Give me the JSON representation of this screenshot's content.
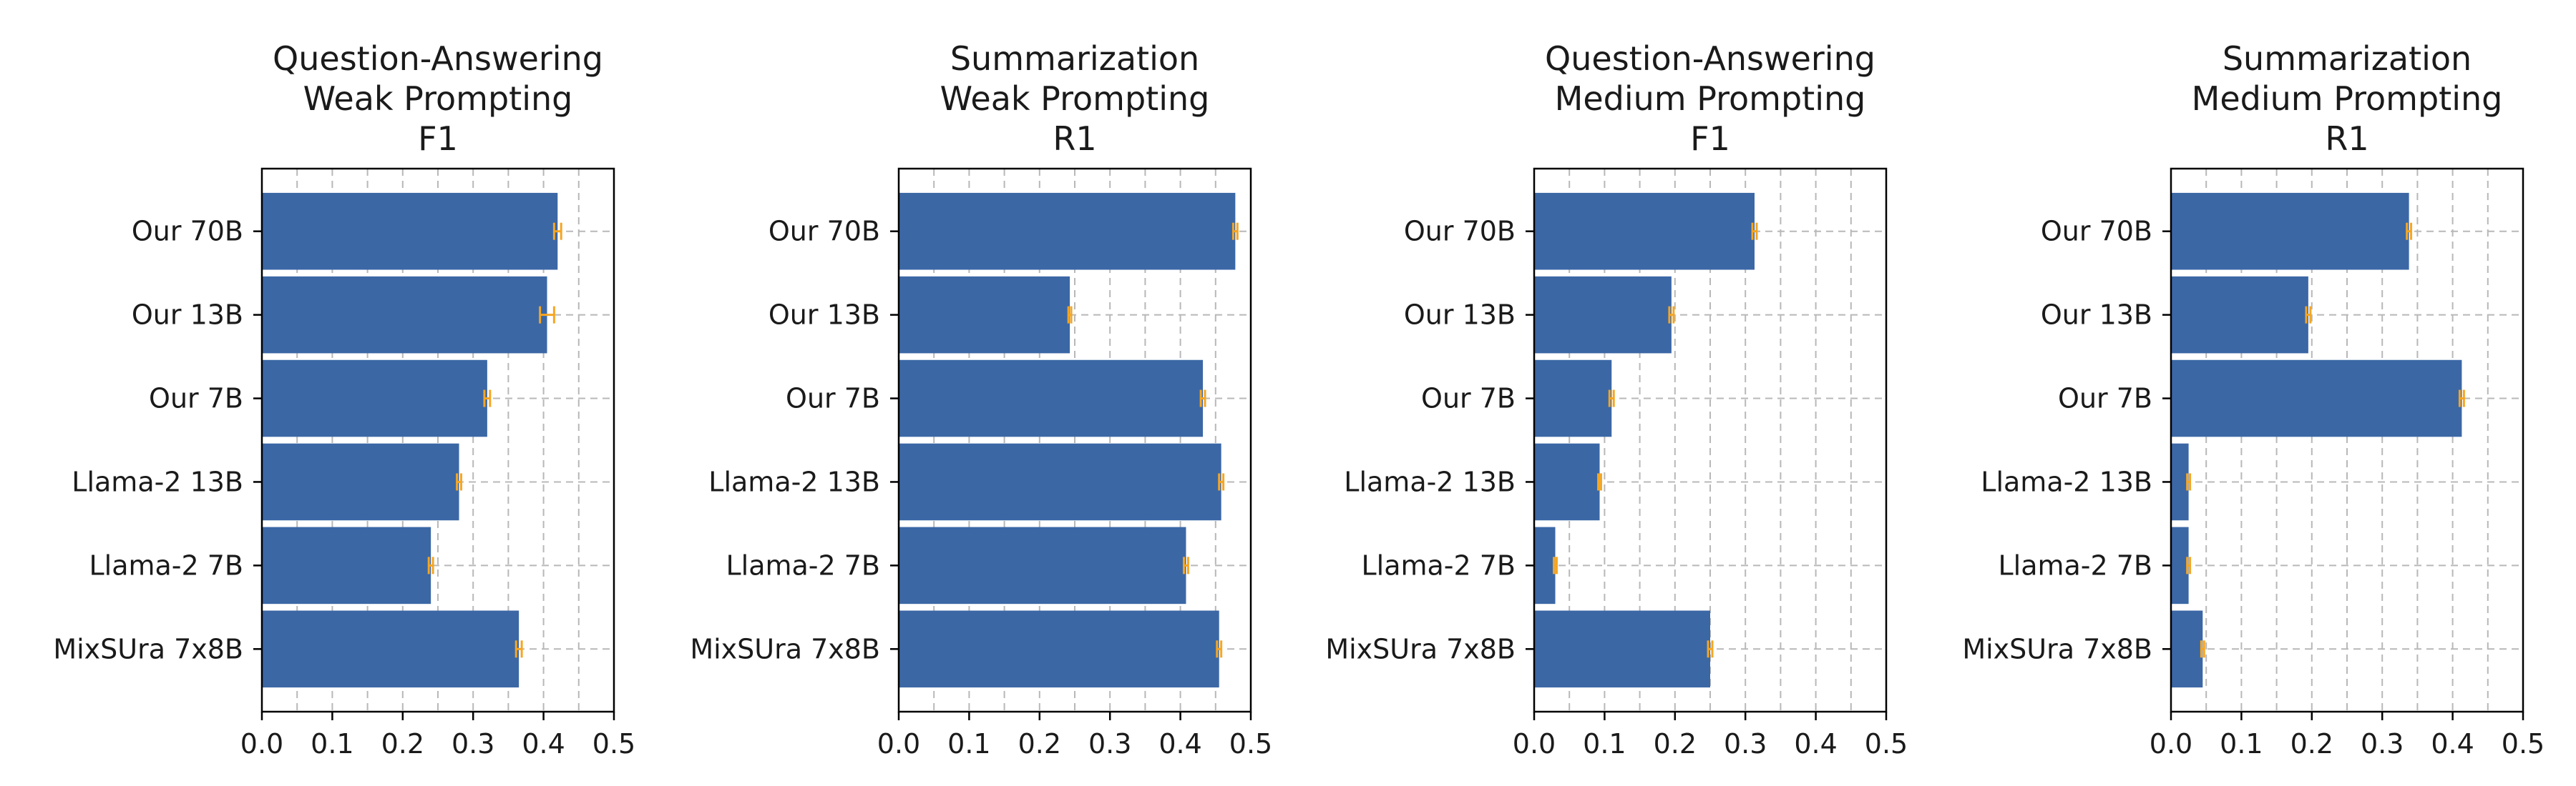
{
  "colors": {
    "bar": "#3b67a5",
    "error_bar": "#f5a623",
    "grid": "#b8b8b8"
  },
  "chart_data": [
    {
      "type": "bar",
      "orientation": "horizontal",
      "title": [
        "Question-Answering",
        "Weak Prompting",
        "F1"
      ],
      "categories": [
        "Our 70B",
        "Our 13B",
        "Our 7B",
        "Llama-2 13B",
        "Llama-2 7B",
        "MixSUra 7x8B"
      ],
      "values": [
        0.42,
        0.405,
        0.32,
        0.28,
        0.24,
        0.365
      ],
      "errors": [
        0.005,
        0.01,
        0.004,
        0.003,
        0.003,
        0.004
      ],
      "xlim": [
        0,
        0.5
      ],
      "xticks": [
        "0.0",
        "0.1",
        "0.2",
        "0.3",
        "0.4",
        "0.5"
      ],
      "grid": true
    },
    {
      "type": "bar",
      "orientation": "horizontal",
      "title": [
        "Summarization",
        "Weak Prompting",
        "R1"
      ],
      "categories": [
        "Our 70B",
        "Our 13B",
        "Our 7B",
        "Llama-2 13B",
        "Llama-2 7B",
        "MixSUra 7x8B"
      ],
      "values": [
        0.478,
        0.243,
        0.432,
        0.458,
        0.408,
        0.455
      ],
      "errors": [
        0.003,
        0.002,
        0.003,
        0.003,
        0.003,
        0.003
      ],
      "xlim": [
        0,
        0.5
      ],
      "xticks": [
        "0.0",
        "0.1",
        "0.2",
        "0.3",
        "0.4",
        "0.5"
      ],
      "grid": true
    },
    {
      "type": "bar",
      "orientation": "horizontal",
      "title": [
        "Question-Answering",
        "Medium Prompting",
        "F1"
      ],
      "categories": [
        "Our 70B",
        "Our 13B",
        "Our 7B",
        "Llama-2 13B",
        "Llama-2 7B",
        "MixSUra 7x8B"
      ],
      "values": [
        0.313,
        0.195,
        0.11,
        0.093,
        0.03,
        0.25
      ],
      "errors": [
        0.003,
        0.003,
        0.003,
        0.002,
        0.002,
        0.003
      ],
      "xlim": [
        0,
        0.5
      ],
      "xticks": [
        "0.0",
        "0.1",
        "0.2",
        "0.3",
        "0.4",
        "0.5"
      ],
      "grid": true
    },
    {
      "type": "bar",
      "orientation": "horizontal",
      "title": [
        "Summarization",
        "Medium Prompting",
        "R1"
      ],
      "categories": [
        "Our 70B",
        "Our 13B",
        "Our 7B",
        "Llama-2 13B",
        "Llama-2 7B",
        "MixSUra 7x8B"
      ],
      "values": [
        0.338,
        0.195,
        0.413,
        0.025,
        0.025,
        0.045
      ],
      "errors": [
        0.003,
        0.003,
        0.003,
        0.002,
        0.002,
        0.002
      ],
      "xlim": [
        0,
        0.5
      ],
      "xticks": [
        "0.0",
        "0.1",
        "0.2",
        "0.3",
        "0.4",
        "0.5"
      ],
      "grid": true
    }
  ]
}
